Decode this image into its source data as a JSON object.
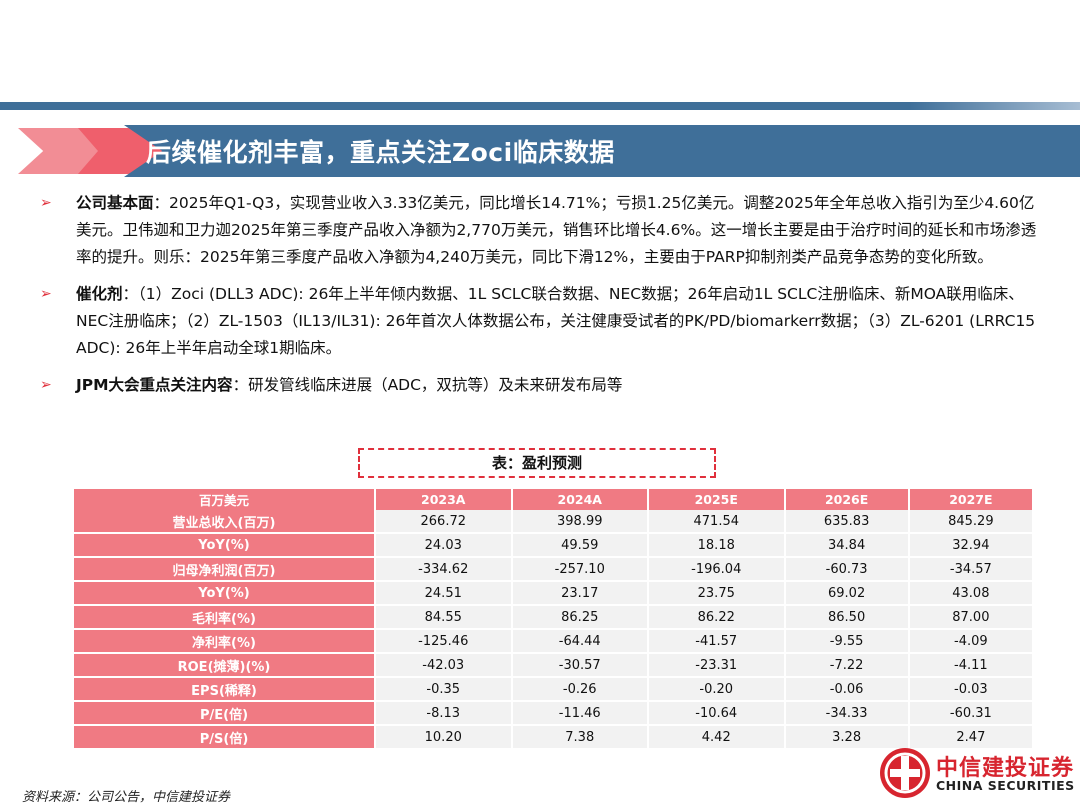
{
  "title": "后续催化剂丰富，重点关注Zoci临床数据",
  "bullets": [
    {
      "label": "公司基本面",
      "text": "：2025年Q1-Q3，实现营业收入3.33亿美元，同比增长14.71%；亏损1.25亿美元。调整2025年全年总收入指引为至少4.60亿美元。卫伟迦和卫力迦2025年第三季度产品收入净额为2,770万美元，销售环比增长4.6%。这一增长主要是由于治疗时间的延长和市场渗透率的提升。则乐：2025年第三季度产品收入净额为4,240万美元，同比下滑12%，主要由于PARP抑制剂类产品竞争态势的变化所致。"
    },
    {
      "label": "催化剂",
      "text": "：（1）Zoci (DLL3 ADC): 26年上半年倾内数据、1L SCLC联合数据、NEC数据；26年启动1L SCLC注册临床、新MOA联用临床、NEC注册临床；（2）ZL-1503（IL13/IL31): 26年首次人体数据公布，关注健康受试者的PK/PD/biomarkerr数据；（3）ZL-6201 (LRRC15 ADC): 26年上半年启动全球1期临床。"
    },
    {
      "label": "JPM大会重点关注内容",
      "text": "：研发管线临床进展（ADC，双抗等）及未来研发布局等"
    }
  ],
  "table": {
    "caption": "表：盈利预测",
    "header": [
      "百万美元",
      "2023A",
      "2024A",
      "2025E",
      "2026E",
      "2027E"
    ],
    "rows": [
      {
        "label": "营业总收入(百万)",
        "values": [
          "266.72",
          "398.99",
          "471.54",
          "635.83",
          "845.29"
        ]
      },
      {
        "label": "YoY(%)",
        "values": [
          "24.03",
          "49.59",
          "18.18",
          "34.84",
          "32.94"
        ]
      },
      {
        "label": "归母净利润(百万)",
        "values": [
          "-334.62",
          "-257.10",
          "-196.04",
          "-60.73",
          "-34.57"
        ]
      },
      {
        "label": "YoY(%)",
        "values": [
          "24.51",
          "23.17",
          "23.75",
          "69.02",
          "43.08"
        ]
      },
      {
        "label": "毛利率(%)",
        "values": [
          "84.55",
          "86.25",
          "86.22",
          "86.50",
          "87.00"
        ]
      },
      {
        "label": "净利率(%)",
        "values": [
          "-125.46",
          "-64.44",
          "-41.57",
          "-9.55",
          "-4.09"
        ]
      },
      {
        "label": "ROE(摊薄)(%)",
        "values": [
          "-42.03",
          "-30.57",
          "-23.31",
          "-7.22",
          "-4.11"
        ]
      },
      {
        "label": "EPS(稀释)",
        "values": [
          "-0.35",
          "-0.26",
          "-0.20",
          "-0.06",
          "-0.03"
        ]
      },
      {
        "label": "P/E(倍)",
        "values": [
          "-8.13",
          "-11.46",
          "-10.64",
          "-34.33",
          "-60.31"
        ]
      },
      {
        "label": "P/S(倍)",
        "values": [
          "10.20",
          "7.38",
          "4.42",
          "3.28",
          "2.47"
        ]
      }
    ]
  },
  "source": "资料来源：公司公告，中信建投证券",
  "logo": {
    "cn": "中信建投证券",
    "en": "CHINA SECURITIES"
  },
  "colors": {
    "accent_blue": "#3f6f99",
    "accent_red": "#e0303c",
    "table_pink": "#f07a83"
  }
}
